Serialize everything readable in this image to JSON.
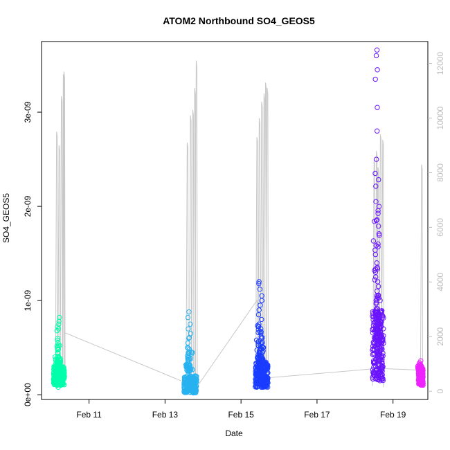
{
  "chart_data": {
    "type": "scatter",
    "title": "ATOM2 Northbound SO4_GEOS5",
    "xlabel": "Date",
    "ylabel": "SO4_GEOS5",
    "xlim": [
      "2017-02-09 18:00",
      "2017-02-19 22:00"
    ],
    "ylim": [
      -5e-11,
      3.75e-09
    ],
    "y2lim": [
      -300,
      12800
    ],
    "x_ticks": [
      {
        "date": "2017-02-11",
        "label": "Feb 11"
      },
      {
        "date": "2017-02-13",
        "label": "Feb 13"
      },
      {
        "date": "2017-02-15",
        "label": "Feb 15"
      },
      {
        "date": "2017-02-17",
        "label": "Feb 17"
      },
      {
        "date": "2017-02-19",
        "label": "Feb 19"
      }
    ],
    "y_ticks": [
      {
        "value": 0,
        "label": "0e+00"
      },
      {
        "value": 1e-09,
        "label": "1e-09"
      },
      {
        "value": 2e-09,
        "label": "2e-09"
      },
      {
        "value": 3e-09,
        "label": "3e-09"
      }
    ],
    "y2_ticks": [
      {
        "value": 0,
        "label": "0"
      },
      {
        "value": 2000,
        "label": "2000"
      },
      {
        "value": 4000,
        "label": "4000"
      },
      {
        "value": 6000,
        "label": "6000"
      },
      {
        "value": 8000,
        "label": "8000"
      },
      {
        "value": 10000,
        "label": "10000"
      },
      {
        "value": 12000,
        "label": "12000"
      }
    ],
    "colors": {
      "altitude_line": "#c8c8c8",
      "flight1": "#00ffaa",
      "flight2": "#27b2f0",
      "flight3": "#1a3cff",
      "flight4": "#6a14ff",
      "flight5": "#ee22ff",
      "axis": "#000000",
      "axis2": "#bebebe"
    },
    "series": [
      {
        "date": "2017-02-10",
        "start": "2017-02-10 01:30",
        "end": "2017-02-10 08:30",
        "color": "#00ffaa",
        "base": [
          1e-10,
          3e-10
        ],
        "dense_top": 3e-10,
        "points": [
          8.2e-10,
          7.8e-10,
          7.5e-10,
          7.2e-10,
          7e-10,
          6.8e-10,
          6e-10,
          5.8e-10,
          5.5e-10,
          5e-10,
          4.5e-10,
          4e-10,
          3.5e-10,
          2e-10,
          1.5e-10,
          8e-11
        ],
        "alt_spikes": [
          {
            "t": "2017-02-10 03:30",
            "v": 9500
          },
          {
            "t": "2017-02-10 05:00",
            "v": 9000
          },
          {
            "t": "2017-02-10 06:30",
            "v": 10800
          },
          {
            "t": "2017-02-10 07:45",
            "v": 11600
          },
          {
            "t": "2017-02-10 08:10",
            "v": 11700
          }
        ],
        "line_end": 6.6e-10
      },
      {
        "date": "2017-02-13",
        "start": "2017-02-13 12:00",
        "end": "2017-02-13 20:00",
        "color": "#27b2f0",
        "base": [
          2e-11,
          2.5e-10
        ],
        "dense_top": 2e-10,
        "points": [
          8.8e-10,
          8.2e-10,
          7.5e-10,
          7e-10,
          6.5e-10,
          6e-10,
          5.5e-10,
          5e-10,
          4.5e-10,
          4.2e-10,
          3.8e-10,
          3.2e-10,
          2.8e-10,
          1e-10
        ],
        "alt_spikes": [
          {
            "t": "2017-02-13 14:00",
            "v": 9100
          },
          {
            "t": "2017-02-13 16:00",
            "v": 10100
          },
          {
            "t": "2017-02-13 17:30",
            "v": 10300
          },
          {
            "t": "2017-02-13 18:40",
            "v": 11100
          },
          {
            "t": "2017-02-13 19:40",
            "v": 12100
          }
        ],
        "line_end": 8e-11
      },
      {
        "date": "2017-02-15",
        "start": "2017-02-15 09:00",
        "end": "2017-02-15 17:00",
        "color": "#1a3cff",
        "base": [
          8e-11,
          3.5e-10
        ],
        "dense_top": 3.5e-10,
        "points": [
          1.2e-09,
          1.18e-09,
          1.12e-09,
          1.05e-09,
          1e-09,
          9.5e-10,
          9e-10,
          8.5e-10,
          8e-10,
          7.5e-10,
          7e-10,
          6.5e-10,
          6e-10,
          5.5e-10,
          5e-10,
          4.5e-10,
          4e-10,
          3.8e-10,
          3e-10
        ],
        "alt_spikes": [
          {
            "t": "2017-02-15 10:00",
            "v": 9300
          },
          {
            "t": "2017-02-15 11:30",
            "v": 10000
          },
          {
            "t": "2017-02-15 13:00",
            "v": 10600
          },
          {
            "t": "2017-02-15 14:30",
            "v": 10900
          },
          {
            "t": "2017-02-15 15:30",
            "v": 11300
          },
          {
            "t": "2017-02-15 16:30",
            "v": 11100
          }
        ],
        "line_end": 1.7e-10
      },
      {
        "date": "2017-02-18",
        "start": "2017-02-18 11:00",
        "end": "2017-02-18 18:00",
        "color": "#6a14ff",
        "base": [
          1.5e-10,
          6e-10
        ],
        "dense_top": 9e-10,
        "points": [
          3.66e-09,
          3.6e-09,
          3.45e-09,
          3.35e-09,
          3.05e-09,
          2.8e-09,
          2.5e-09,
          2.35e-09,
          2.05e-09,
          1.85e-09,
          1.6e-09,
          1.4e-09,
          1.35e-09,
          1.3e-09,
          1.25e-09,
          1.2e-09,
          1.15e-09,
          1.1e-09,
          1.05e-09,
          1e-09
        ],
        "alt_spikes": [
          {
            "t": "2017-02-18 12:00",
            "v": 8500
          },
          {
            "t": "2017-02-18 13:30",
            "v": 8800
          },
          {
            "t": "2017-02-18 14:30",
            "v": 8200
          },
          {
            "t": "2017-02-18 16:00",
            "v": 9400
          },
          {
            "t": "2017-02-18 17:30",
            "v": 9200
          }
        ],
        "line_end": 2.2e-10
      },
      {
        "date": "2017-02-19",
        "start": "2017-02-19 16:00",
        "end": "2017-02-19 19:00",
        "color": "#ee22ff",
        "base": [
          1e-10,
          2.8e-10
        ],
        "dense_top": 2.8e-10,
        "points": [
          3.6e-10,
          3.4e-10,
          3.2e-10,
          3e-10,
          2.8e-10,
          2.5e-10,
          2.2e-10,
          1.8e-10,
          1.5e-10,
          1.2e-10
        ],
        "alt_spikes": [
          {
            "t": "2017-02-19 18:00",
            "v": 8300
          }
        ],
        "line_end": 1.8e-10
      }
    ],
    "connector_points": [
      {
        "t": "2017-02-10 08:30",
        "v": 6.6e-10
      },
      {
        "t": "2017-02-13 20:00",
        "v": 8e-11
      },
      {
        "t": "2017-02-15 10:00",
        "v": 1e-09
      },
      {
        "t": "2017-02-15 17:00",
        "v": 1.8e-10
      },
      {
        "t": "2017-02-18 15:00",
        "v": 2.8e-10
      },
      {
        "t": "2017-02-19 19:00",
        "v": 2.6e-10
      }
    ]
  }
}
